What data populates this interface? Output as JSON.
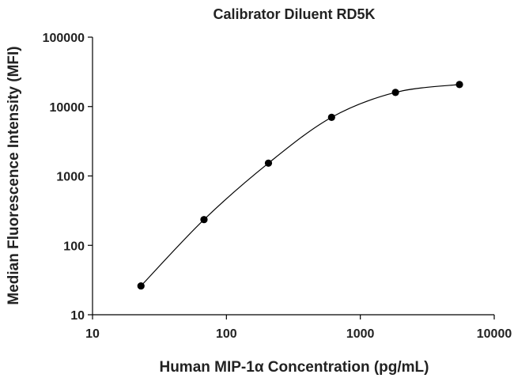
{
  "chart_data": {
    "type": "scatter",
    "title": "Calibrator Diluent RD5K",
    "xlabel": "Human MIP-1α Concentration (pg/mL)",
    "ylabel": "Median Fluorescence Intensity (MFI)",
    "xscale": "log",
    "yscale": "log",
    "xlim": [
      10,
      10000
    ],
    "ylim": [
      10,
      100000
    ],
    "xticks": [
      10,
      100,
      1000,
      10000
    ],
    "xtick_labels": [
      "10",
      "100",
      "1000",
      "10000"
    ],
    "yticks": [
      10,
      100,
      1000,
      10000,
      100000
    ],
    "ytick_labels": [
      "10",
      "100",
      "1000",
      "10000",
      "100000"
    ],
    "grid": false,
    "legend": "none",
    "series": [
      {
        "x": [
          23,
          68,
          206,
          610,
          1830,
          5500
        ],
        "y": [
          26,
          235,
          1530,
          7000,
          16000,
          20800
        ],
        "marker": "circle",
        "fit_curve": true,
        "color": "#000000"
      }
    ]
  }
}
